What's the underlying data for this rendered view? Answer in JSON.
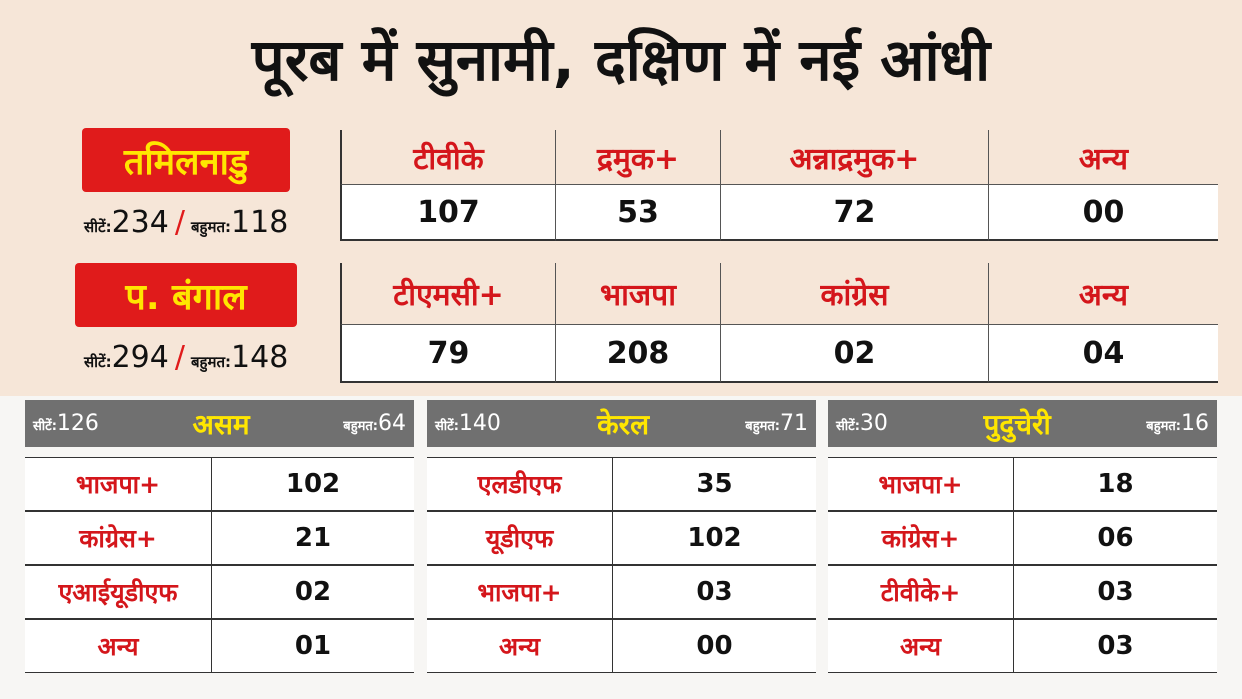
{
  "title": "पूरब में सुनामी, दक्षिण में नई आंधी",
  "states": [
    {
      "name": "तमिलनाडु",
      "seats_label": "सीटें:",
      "seats": "234",
      "majority_label": "बहुमत:",
      "majority": "118",
      "parties": [
        "टीवीके",
        "द्रमुक+",
        "अन्नाद्रमुक+",
        "अन्य"
      ],
      "results": [
        "107",
        "53",
        "72",
        "00"
      ]
    },
    {
      "name": "प. बंगाल",
      "seats_label": "सीटें:",
      "seats": "294",
      "majority_label": "बहुमत:",
      "majority": "148",
      "parties": [
        "टीएमसी+",
        "भाजपा",
        "कांग्रेस",
        "अन्य"
      ],
      "results": [
        "79",
        "208",
        "02",
        "04"
      ]
    }
  ],
  "panels": [
    {
      "name": "असम",
      "seats_label": "सीटें:",
      "seats": "126",
      "majority_label": "बहुमत:",
      "majority": "64",
      "rows": [
        [
          "भाजपा+",
          "102"
        ],
        [
          "कांग्रेस+",
          "21"
        ],
        [
          "एआईयूडीएफ",
          "02"
        ],
        [
          "अन्य",
          "01"
        ]
      ]
    },
    {
      "name": "केरल",
      "seats_label": "सीटें:",
      "seats": "140",
      "majority_label": "बहुमत:",
      "majority": "71",
      "rows": [
        [
          "एलडीएफ",
          "35"
        ],
        [
          "यूडीएफ",
          "102"
        ],
        [
          "भाजपा+",
          "03"
        ],
        [
          "अन्य",
          "00"
        ]
      ]
    },
    {
      "name": "पुदुचेरी",
      "seats_label": "सीटें:",
      "seats": "30",
      "majority_label": "बहुमत:",
      "majority": "16",
      "rows": [
        [
          "भाजपा+",
          "18"
        ],
        [
          "कांग्रेस+",
          "06"
        ],
        [
          "टीवीके+",
          "03"
        ],
        [
          "अन्य",
          "03"
        ]
      ]
    }
  ]
}
